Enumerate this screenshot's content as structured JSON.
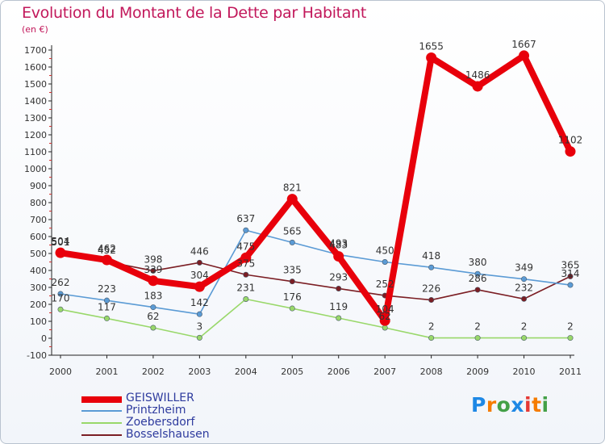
{
  "title": "Evolution du Montant de la Dette par Habitant",
  "subtitle": "(en €)",
  "logo": {
    "text": "Proxiti",
    "letters": [
      {
        "ch": "P",
        "color": "#1e88e5"
      },
      {
        "ch": "r",
        "color": "#f57c00"
      },
      {
        "ch": "o",
        "color": "#43a047"
      },
      {
        "ch": "x",
        "color": "#1e88e5"
      },
      {
        "ch": "i",
        "color": "#e53935"
      },
      {
        "ch": "t",
        "color": "#f57c00"
      },
      {
        "ch": "i",
        "color": "#43a047"
      }
    ]
  },
  "chart_data": {
    "type": "line",
    "x": [
      2000,
      2001,
      2002,
      2003,
      2004,
      2005,
      2006,
      2007,
      2008,
      2009,
      2010,
      2011
    ],
    "ylim": [
      -100,
      1700
    ],
    "yticks": [
      -100,
      0,
      100,
      200,
      300,
      400,
      500,
      600,
      700,
      800,
      900,
      1000,
      1100,
      1200,
      1300,
      1400,
      1500,
      1600,
      1700
    ],
    "grid": false,
    "legend": "bottom-left",
    "series": [
      {
        "name": "GEISWILLER",
        "color": "#e8000b",
        "values": [
          504,
          462,
          339,
          304,
          475,
          821,
          483,
          104,
          1655,
          1486,
          1667,
          1102
        ],
        "labels": [
          "504",
          "462",
          "339",
          "304",
          "475",
          "821",
          "483",
          "104",
          "1655",
          "1486",
          "1667",
          "1102"
        ]
      },
      {
        "name": "Printzheim",
        "color": "#5b9bd5",
        "values": [
          262,
          223,
          183,
          142,
          637,
          565,
          493,
          450,
          418,
          380,
          349,
          314
        ],
        "labels": [
          "262",
          "223",
          "183",
          "142",
          "637",
          "565",
          "493",
          "450",
          "418",
          "380",
          "349",
          "314"
        ]
      },
      {
        "name": "Zoebersdorf",
        "color": "#99d86a",
        "values": [
          170,
          117,
          62,
          3,
          231,
          176,
          119,
          62,
          2,
          2,
          2,
          2
        ],
        "labels": [
          "170",
          "117",
          "62",
          "3",
          "231",
          "176",
          "119",
          "62",
          "2",
          "2",
          "2",
          "2"
        ]
      },
      {
        "name": "Bosselshausen",
        "color": "#7b1e24",
        "values": [
          501,
          452,
          398,
          446,
          375,
          335,
          293,
          252,
          226,
          286,
          232,
          365
        ],
        "labels": [
          "501",
          "452",
          "398",
          "446",
          "375",
          "335",
          "293",
          "252",
          "226",
          "286",
          "232",
          "365"
        ]
      }
    ]
  }
}
